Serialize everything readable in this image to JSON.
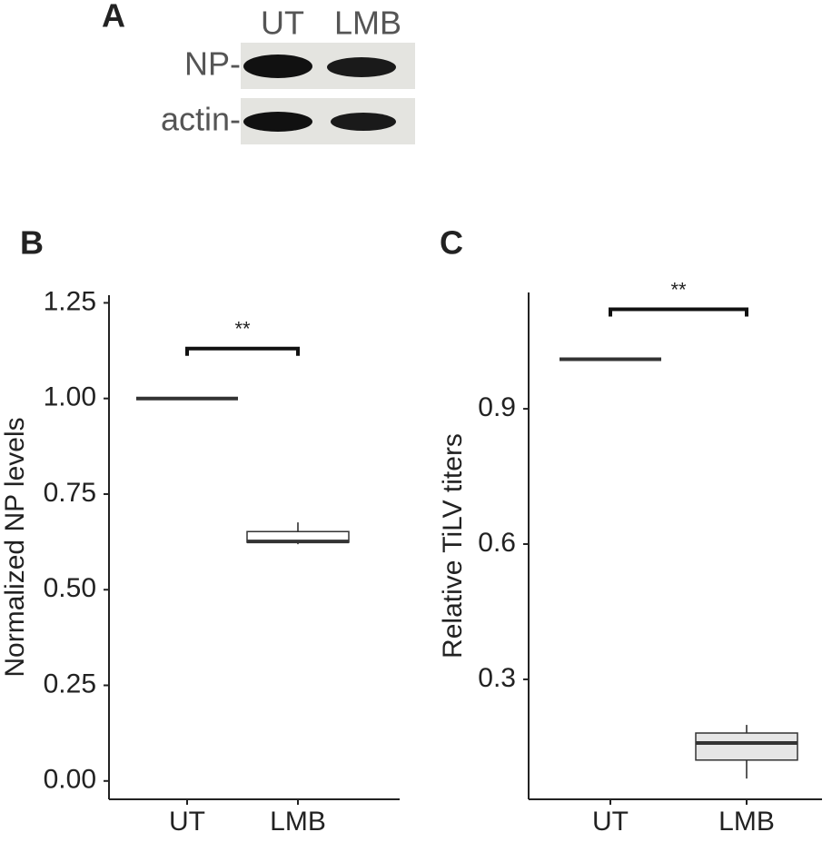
{
  "blot": {
    "panel_label": "A",
    "lanes": [
      "UT",
      "LMB"
    ],
    "bands": [
      "NP-",
      "actin-"
    ]
  },
  "chart_data": [
    {
      "type": "box",
      "panel_label": "B",
      "ylabel": "Normalized NP levels",
      "annotation": "**",
      "categories": [
        "UT",
        "LMB"
      ],
      "color": "#ffffff",
      "series": [
        {
          "values": [
            {
              "min": 1,
              "q1": 1,
              "median": 1,
              "q3": 1,
              "max": 1
            },
            {
              "min": 0.619,
              "q1": 0.624,
              "median": 0.626,
              "q3": 0.652,
              "max": 0.676
            }
          ]
        }
      ],
      "ylim": [
        -0.048,
        1.27
      ],
      "yticks": [
        {
          "value": 0,
          "label": "0.00"
        },
        0.25,
        {
          "value": 0.5,
          "label": "0.50"
        },
        0.75,
        {
          "value": 1,
          "label": "1.00"
        },
        1.25
      ]
    },
    {
      "type": "box",
      "panel_label": "C",
      "ylabel": "Relative TiLV titers",
      "annotation": "**",
      "categories": [
        "UT",
        "LMB"
      ],
      "color": "#e6e6e6",
      "series": [
        {
          "values": [
            {
              "min": 1.01,
              "q1": 1.01,
              "median": 1.01,
              "q3": 1.01,
              "max": 1.01
            },
            {
              "min": 0.08,
              "q1": 0.121,
              "median": 0.159,
              "q3": 0.181,
              "max": 0.199
            }
          ]
        }
      ],
      "ylim": [
        0.034,
        1.158
      ],
      "yticks": [
        0.3,
        0.6,
        0.9
      ]
    }
  ]
}
